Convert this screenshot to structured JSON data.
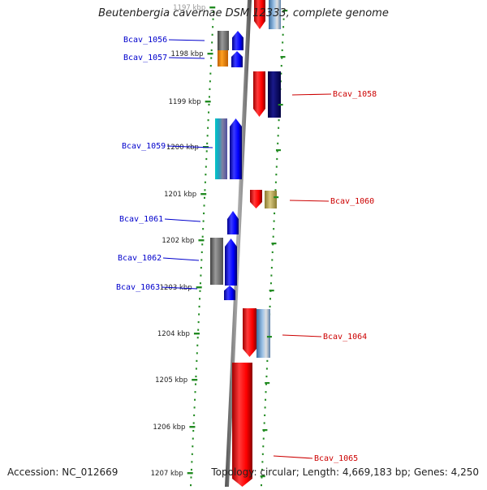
{
  "title": "Beutenbergia cavernae DSM 12333, complete genome",
  "accession": "Accession: NC_012669",
  "topology": "Topology: circular; Length: 4,669,183 bp; Genes: 4,250",
  "ticks": [
    {
      "label": "1197 kbp"
    },
    {
      "label": "1198 kbp"
    },
    {
      "label": "1199 kbp"
    },
    {
      "label": "1200 kbp"
    },
    {
      "label": "1201 kbp"
    },
    {
      "label": "1202 kbp"
    },
    {
      "label": "1203 kbp"
    },
    {
      "label": "1204 kbp"
    },
    {
      "label": "1205 kbp"
    },
    {
      "label": "1206 kbp"
    },
    {
      "label": "1207 kbp"
    }
  ],
  "gene_labels": {
    "left": [
      "Bcav_1056",
      "Bcav_1057",
      "Bcav_1059",
      "Bcav_1061",
      "Bcav_1062",
      "Bcav_1063"
    ],
    "right": [
      "Bcav_1058",
      "Bcav_1060",
      "Bcav_1064",
      "Bcav_1065"
    ]
  },
  "colors": {
    "left_label": "#0000cc",
    "right_label": "#cc0000",
    "forward_gene": "#0000ff",
    "reverse_gene": "#ff0000",
    "backbone": "#808080",
    "tick_dots": "#228b22"
  }
}
